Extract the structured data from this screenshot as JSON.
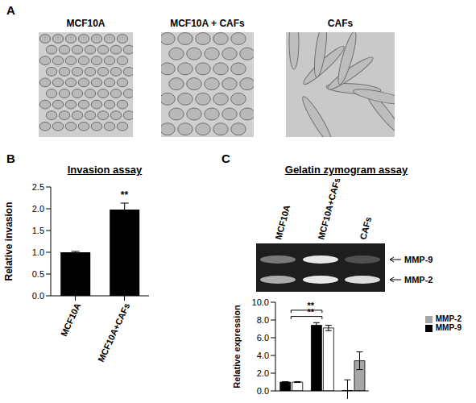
{
  "panel_a": {
    "label": "A",
    "images": [
      "MCF10A",
      "MCF10A + CAFs",
      "CAFs"
    ]
  },
  "chart_data": [
    {
      "panel": "B",
      "type": "bar",
      "title": "Invasion assay",
      "y_label": "Relative invasion",
      "categories": [
        "MCF10A",
        "MCF10A+CAFs"
      ],
      "values": [
        1.0,
        1.98
      ],
      "errors": [
        0.02,
        0.15
      ],
      "color": "#000000",
      "ylim": [
        0,
        2.5
      ],
      "yticks": [
        {
          "value": 0,
          "label": "0.0"
        },
        0.5,
        {
          "value": 1,
          "label": "1.0"
        },
        1.5,
        {
          "value": 2,
          "label": "2.0"
        },
        2.5
      ],
      "annotations": [
        {
          "text": "**",
          "category": "MCF10A+CAFs"
        }
      ]
    },
    {
      "panel": "C",
      "type": "bar",
      "title": "Gelatin zymogram assay",
      "lanes": [
        "MCF10A",
        "MCF10A+CAFs",
        "CAFs"
      ],
      "bands": [
        "MMP-9",
        "MMP-2"
      ],
      "y_label": "Relative expression",
      "categories": [
        null,
        null,
        null
      ],
      "series": [
        {
          "name": "MMP-9",
          "color": "#000000",
          "values": [
            1.0,
            7.4,
            0.05
          ],
          "errors": [
            0.05,
            0.3,
            1.2
          ]
        },
        {
          "name": "MMP-2",
          "color": "#a6a6a6",
          "colors": [
            "#ffffff",
            "#ffffff",
            "#a6a6a6"
          ],
          "values": [
            1.0,
            7.1,
            3.4
          ],
          "errors": [
            0.05,
            0.3,
            1.0
          ]
        }
      ],
      "ylim": [
        0,
        10
      ],
      "yticks": [
        {
          "value": 0,
          "label": "0.0"
        },
        {
          "value": 2,
          "label": "2.0"
        },
        {
          "value": 4,
          "label": "4.0"
        },
        {
          "value": 6,
          "label": "6.0"
        },
        {
          "value": 8,
          "label": "8.0"
        },
        {
          "value": 10,
          "label": "10.0"
        }
      ],
      "legend": "right",
      "tick_labels": "y",
      "annotations": [
        {
          "text": "**",
          "from": 0,
          "to": 1,
          "series": "MMP-9"
        },
        {
          "text": "**",
          "from": 0,
          "to": 1,
          "series": "MMP-2"
        }
      ]
    }
  ]
}
